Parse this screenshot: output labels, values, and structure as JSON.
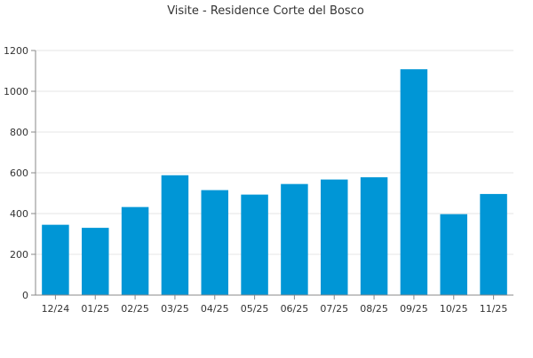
{
  "chart_data": {
    "type": "bar",
    "title": "Visite - Residence Corte del Bosco",
    "xlabel": "",
    "ylabel": "",
    "categories": [
      "12/24",
      "01/25",
      "02/25",
      "03/25",
      "04/25",
      "05/25",
      "06/25",
      "07/25",
      "08/25",
      "09/25",
      "10/25",
      "11/25"
    ],
    "values": [
      345,
      330,
      432,
      588,
      515,
      493,
      545,
      567,
      578,
      1108,
      397,
      496
    ],
    "ylim": [
      0,
      1200
    ],
    "yticks": [
      0,
      200,
      400,
      600,
      800,
      1000,
      1200
    ],
    "grid": true,
    "bar_color": "#0096d6",
    "legend": "none"
  }
}
